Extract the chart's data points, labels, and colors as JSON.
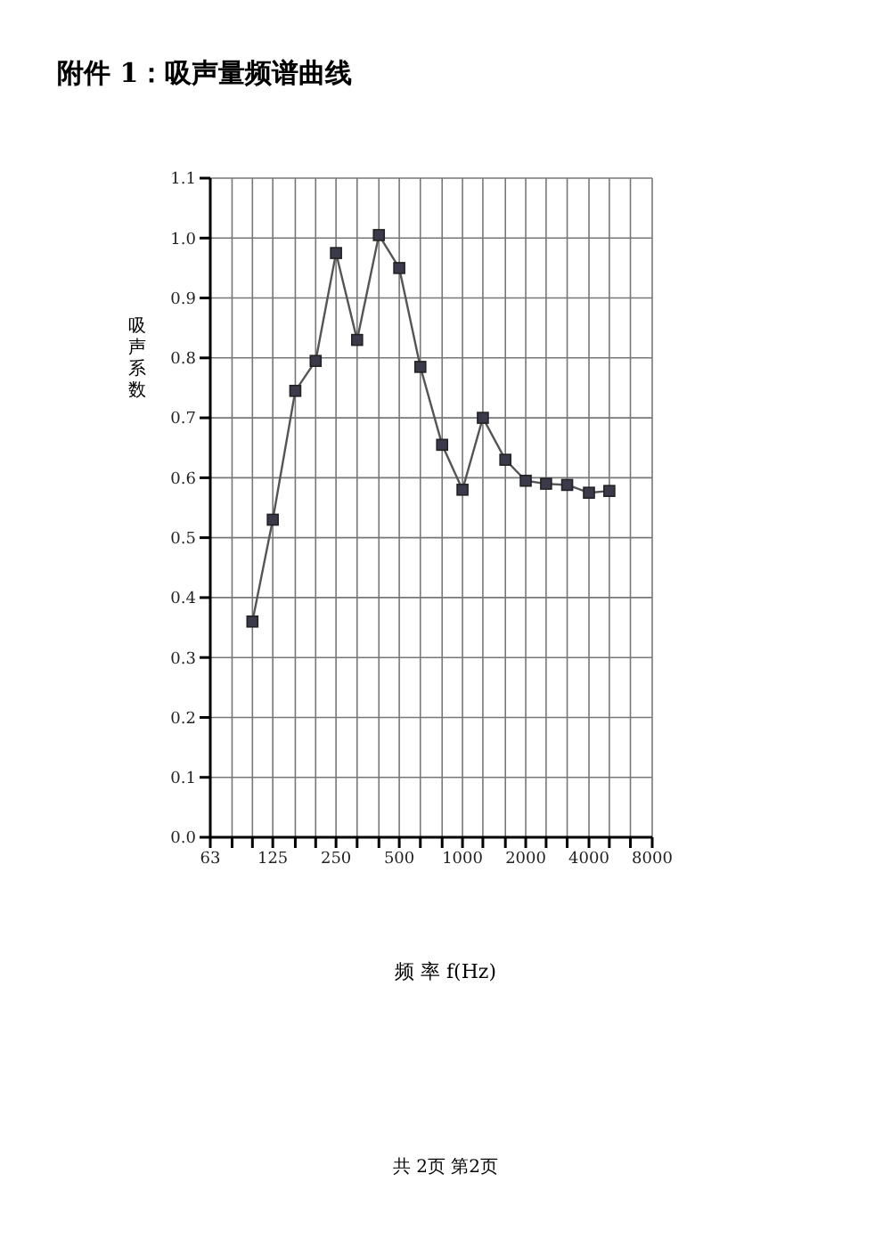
{
  "chart_data": {
    "type": "line",
    "title": "附件 1：吸声量频谱曲线",
    "xlabel": "频 率 f(Hz)",
    "ylabel": "吸声系数",
    "annotations": [
      "共 2页 第2页"
    ],
    "x": [
      100,
      125,
      160,
      200,
      250,
      315,
      400,
      500,
      630,
      800,
      1000,
      1250,
      1600,
      2000,
      2500,
      3150,
      4000,
      5000
    ],
    "series": [
      {
        "color": "#555555",
        "values": [
          0.36,
          0.53,
          0.745,
          0.795,
          0.975,
          0.83,
          1.005,
          0.95,
          0.785,
          0.655,
          0.58,
          0.7,
          0.63,
          0.595,
          0.59,
          0.588,
          0.575,
          0.578
        ]
      }
    ],
    "log": "x",
    "xlim": [
      63,
      8000
    ],
    "xticks": [
      63,
      {
        "value": 80,
        "label": null
      },
      {
        "value": 100,
        "label": null
      },
      125,
      {
        "value": 160,
        "label": null
      },
      {
        "value": 200,
        "label": null
      },
      250,
      {
        "value": 315,
        "label": null
      },
      {
        "value": 400,
        "label": null
      },
      500,
      {
        "value": 630,
        "label": null
      },
      {
        "value": 800,
        "label": null
      },
      1000,
      {
        "value": 1250,
        "label": null
      },
      {
        "value": 1600,
        "label": null
      },
      2000,
      {
        "value": 2500,
        "label": null
      },
      {
        "value": 3150,
        "label": null
      },
      4000,
      {
        "value": 5000,
        "label": null
      },
      {
        "value": 6300,
        "label": null
      },
      8000
    ],
    "ylim": [
      0,
      1.1
    ],
    "yticks": [
      {
        "value": 0,
        "label": "0.0"
      },
      0.1,
      0.2,
      0.3,
      0.4,
      0.5,
      0.6,
      0.7,
      0.8,
      0.9,
      {
        "value": 1,
        "label": "1.0"
      },
      1.1
    ],
    "grid": true,
    "marker": "square",
    "line_style": "solid",
    "legend": false
  }
}
